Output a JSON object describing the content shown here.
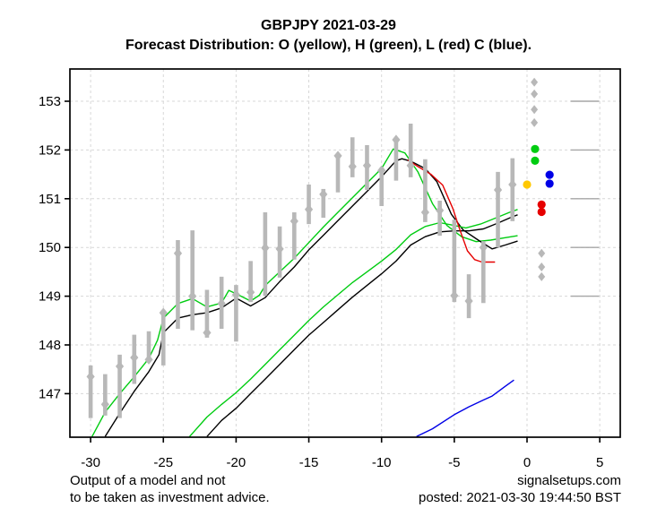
{
  "header": {
    "title": "GBPJPY 2021-03-29",
    "subtitle": "Forecast Distribution: O (yellow), H (green), L (red) C (blue)."
  },
  "footer": {
    "disclaimer_line1": "Output of a model and not",
    "disclaimer_line2": "to be taken as investment advice.",
    "site": "signalsetups.com",
    "posted": "posted: 2021-03-30 19:44:50 BST"
  },
  "chart_data": {
    "type": "line",
    "title": "GBPJPY 2021-03-29",
    "subtitle": "Forecast Distribution: O (yellow), H (green), L (red) C (blue).",
    "xlabel": "",
    "ylabel": "",
    "xlim": [
      -31.4,
      6.4
    ],
    "ylim": [
      146.1,
      153.66
    ],
    "x_ticks": [
      -30,
      -25,
      -20,
      -15,
      -10,
      -5,
      0,
      5
    ],
    "y_ticks": [
      147,
      148,
      149,
      150,
      151,
      152,
      153
    ],
    "grid": "dashed",
    "legend_position": "none",
    "colors": {
      "green": "#00cc11",
      "black": "#000000",
      "red": "#e60000",
      "blue": "#0000e6",
      "yellow": "#ffc800",
      "candle_gray": "#b8b8b8",
      "grid_gray": "#d7d7d7",
      "level_gray": "#a6a6a6"
    },
    "candles": [
      {
        "x": -30,
        "low": 146.5,
        "high": 147.58,
        "dot": 147.35
      },
      {
        "x": -29,
        "low": 146.55,
        "high": 147.4,
        "dot": 146.78
      },
      {
        "x": -28,
        "low": 146.5,
        "high": 147.8,
        "dot": 147.56
      },
      {
        "x": -27,
        "low": 147.2,
        "high": 148.21,
        "dot": 147.74
      },
      {
        "x": -26,
        "low": 147.65,
        "high": 148.28,
        "dot": 147.7
      },
      {
        "x": -25,
        "low": 147.58,
        "high": 148.72,
        "dot": 148.66
      },
      {
        "x": -24,
        "low": 148.33,
        "high": 150.15,
        "dot": 149.88
      },
      {
        "x": -23,
        "low": 148.3,
        "high": 150.35,
        "dot": 149.0
      },
      {
        "x": -22,
        "low": 148.15,
        "high": 149.13,
        "dot": 148.25
      },
      {
        "x": -21,
        "low": 148.33,
        "high": 149.4,
        "dot": 148.85
      },
      {
        "x": -20,
        "low": 148.07,
        "high": 149.23,
        "dot": 149.03
      },
      {
        "x": -19,
        "low": 148.88,
        "high": 149.72,
        "dot": 149.08
      },
      {
        "x": -18,
        "low": 149.01,
        "high": 150.72,
        "dot": 149.99
      },
      {
        "x": -17,
        "low": 149.38,
        "high": 150.43,
        "dot": 149.97
      },
      {
        "x": -16,
        "low": 149.75,
        "high": 150.72,
        "dot": 150.54
      },
      {
        "x": -15,
        "low": 150.48,
        "high": 151.29,
        "dot": 150.78
      },
      {
        "x": -14,
        "low": 150.61,
        "high": 151.2,
        "dot": 151.09
      },
      {
        "x": -13,
        "low": 151.13,
        "high": 151.92,
        "dot": 151.88
      },
      {
        "x": -12,
        "low": 151.44,
        "high": 152.26,
        "dot": 151.66
      },
      {
        "x": -11,
        "low": 151.18,
        "high": 152.1,
        "dot": 151.68
      },
      {
        "x": -10,
        "low": 150.85,
        "high": 151.64,
        "dot": 151.58
      },
      {
        "x": -9,
        "low": 151.37,
        "high": 152.23,
        "dot": 152.21
      },
      {
        "x": -8,
        "low": 151.44,
        "high": 152.54,
        "dot": 151.68
      },
      {
        "x": -7,
        "low": 150.52,
        "high": 151.81,
        "dot": 150.72
      },
      {
        "x": -6,
        "low": 150.24,
        "high": 150.96,
        "dot": 150.76
      },
      {
        "x": -5,
        "low": 148.88,
        "high": 150.57,
        "dot": 149.01
      },
      {
        "x": -4,
        "low": 148.55,
        "high": 149.45,
        "dot": 148.9
      },
      {
        "x": -3,
        "low": 148.86,
        "high": 150.13,
        "dot": 150.0
      },
      {
        "x": -2,
        "low": 150.0,
        "high": 151.55,
        "dot": 151.18
      },
      {
        "x": -1,
        "low": 150.54,
        "high": 151.83,
        "dot": 151.29
      }
    ],
    "series": [
      {
        "name": "green-upper-line",
        "color": "#00cc11",
        "points": [
          [
            -29.9,
            146.12
          ],
          [
            -29,
            146.62
          ],
          [
            -28,
            147.0
          ],
          [
            -27,
            147.35
          ],
          [
            -26,
            147.72
          ],
          [
            -25.4,
            148.1
          ],
          [
            -25,
            148.55
          ],
          [
            -24,
            148.85
          ],
          [
            -23,
            148.95
          ],
          [
            -22,
            148.78
          ],
          [
            -21,
            148.86
          ],
          [
            -20.5,
            149.12
          ],
          [
            -20,
            149.05
          ],
          [
            -19,
            148.9
          ],
          [
            -18.4,
            149.02
          ],
          [
            -18,
            149.22
          ],
          [
            -17,
            149.5
          ],
          [
            -16,
            149.78
          ],
          [
            -15,
            150.1
          ],
          [
            -14,
            150.42
          ],
          [
            -13,
            150.72
          ],
          [
            -12,
            151.02
          ],
          [
            -11,
            151.32
          ],
          [
            -10,
            151.62
          ],
          [
            -9.2,
            152.02
          ],
          [
            -8.4,
            151.94
          ],
          [
            -7.5,
            151.55
          ],
          [
            -6.5,
            150.9
          ],
          [
            -5.5,
            150.45
          ],
          [
            -4.5,
            150.22
          ],
          [
            -3.5,
            150.12
          ],
          [
            -2.5,
            150.15
          ],
          [
            -1.5,
            150.2
          ],
          [
            -0.65,
            150.24
          ]
        ]
      },
      {
        "name": "black-upper-line",
        "color": "#000000",
        "points": [
          [
            -29,
            146.12
          ],
          [
            -28,
            146.6
          ],
          [
            -27,
            147.05
          ],
          [
            -26,
            147.45
          ],
          [
            -25.3,
            147.8
          ],
          [
            -25,
            148.25
          ],
          [
            -24,
            148.55
          ],
          [
            -23,
            148.62
          ],
          [
            -22,
            148.66
          ],
          [
            -21,
            148.76
          ],
          [
            -20,
            148.96
          ],
          [
            -19,
            148.8
          ],
          [
            -18,
            148.97
          ],
          [
            -17,
            149.3
          ],
          [
            -16,
            149.6
          ],
          [
            -15,
            149.95
          ],
          [
            -14,
            150.25
          ],
          [
            -13,
            150.55
          ],
          [
            -12,
            150.85
          ],
          [
            -11,
            151.15
          ],
          [
            -10,
            151.45
          ],
          [
            -9,
            151.78
          ],
          [
            -8.6,
            151.82
          ],
          [
            -8,
            151.77
          ],
          [
            -7,
            151.62
          ],
          [
            -6.2,
            151.35
          ],
          [
            -5.2,
            150.68
          ],
          [
            -4.4,
            150.36
          ],
          [
            -3.4,
            150.16
          ],
          [
            -2.4,
            149.97
          ],
          [
            -1.5,
            150.05
          ],
          [
            -0.65,
            150.13
          ]
        ]
      },
      {
        "name": "green-lower-line",
        "color": "#00cc11",
        "points": [
          [
            -23.2,
            146.12
          ],
          [
            -22,
            146.52
          ],
          [
            -21,
            146.78
          ],
          [
            -20,
            147.02
          ],
          [
            -19,
            147.3
          ],
          [
            -18,
            147.6
          ],
          [
            -17,
            147.9
          ],
          [
            -16,
            148.2
          ],
          [
            -15,
            148.5
          ],
          [
            -14,
            148.78
          ],
          [
            -13,
            149.03
          ],
          [
            -12,
            149.28
          ],
          [
            -11,
            149.5
          ],
          [
            -10,
            149.72
          ],
          [
            -9,
            149.96
          ],
          [
            -8,
            150.26
          ],
          [
            -7,
            150.43
          ],
          [
            -6,
            150.51
          ],
          [
            -5,
            150.45
          ],
          [
            -4.2,
            150.4
          ],
          [
            -3.2,
            150.48
          ],
          [
            -2.2,
            150.6
          ],
          [
            -1.2,
            150.72
          ],
          [
            -0.65,
            150.78
          ]
        ]
      },
      {
        "name": "black-lower-line",
        "color": "#000000",
        "points": [
          [
            -22,
            146.12
          ],
          [
            -21,
            146.45
          ],
          [
            -20,
            146.7
          ],
          [
            -19,
            147.0
          ],
          [
            -18,
            147.3
          ],
          [
            -17,
            147.6
          ],
          [
            -16,
            147.9
          ],
          [
            -15,
            148.2
          ],
          [
            -14,
            148.46
          ],
          [
            -13,
            148.72
          ],
          [
            -12,
            148.98
          ],
          [
            -11,
            149.22
          ],
          [
            -10,
            149.46
          ],
          [
            -9,
            149.72
          ],
          [
            -8,
            150.05
          ],
          [
            -7,
            150.22
          ],
          [
            -6,
            150.32
          ],
          [
            -5,
            150.34
          ],
          [
            -4,
            150.34
          ],
          [
            -3,
            150.38
          ],
          [
            -2,
            150.5
          ],
          [
            -1,
            150.63
          ],
          [
            -0.65,
            150.67
          ]
        ]
      },
      {
        "name": "red-line",
        "color": "#e60000",
        "points": [
          [
            -8.2,
            151.8
          ],
          [
            -7.5,
            151.66
          ],
          [
            -6.6,
            151.5
          ],
          [
            -5.8,
            151.28
          ],
          [
            -5.1,
            150.8
          ],
          [
            -4.6,
            150.35
          ],
          [
            -4.1,
            149.93
          ],
          [
            -3.6,
            149.75
          ],
          [
            -3.1,
            149.7
          ],
          [
            -2.2,
            149.7
          ]
        ]
      },
      {
        "name": "blue-line",
        "color": "#0000e6",
        "points": [
          [
            -7.6,
            146.12
          ],
          [
            -6.5,
            146.28
          ],
          [
            -5,
            146.57
          ],
          [
            -4,
            146.73
          ],
          [
            -3,
            146.87
          ],
          [
            -2.4,
            146.95
          ],
          [
            -1.5,
            147.15
          ],
          [
            -0.9,
            147.28
          ]
        ]
      }
    ],
    "forecast_markers": {
      "gray_diamonds": [
        [
          0.5,
          153.39
        ],
        [
          0.5,
          153.15
        ],
        [
          0.5,
          152.83
        ],
        [
          0.5,
          152.56
        ],
        [
          1.0,
          149.88
        ],
        [
          1.0,
          149.6
        ],
        [
          1.0,
          149.4
        ]
      ],
      "open_yellow": [
        [
          0.0,
          151.29
        ]
      ],
      "high_green": [
        [
          0.55,
          152.02
        ],
        [
          0.55,
          151.78
        ]
      ],
      "low_red": [
        [
          1.0,
          150.88
        ],
        [
          1.0,
          150.73
        ]
      ],
      "close_blue": [
        [
          1.55,
          151.49
        ],
        [
          1.55,
          151.31
        ]
      ]
    },
    "level_segments": {
      "levels": [
        149,
        150,
        151,
        152,
        153
      ],
      "x_start": 3.0,
      "x_end": 4.95
    }
  }
}
